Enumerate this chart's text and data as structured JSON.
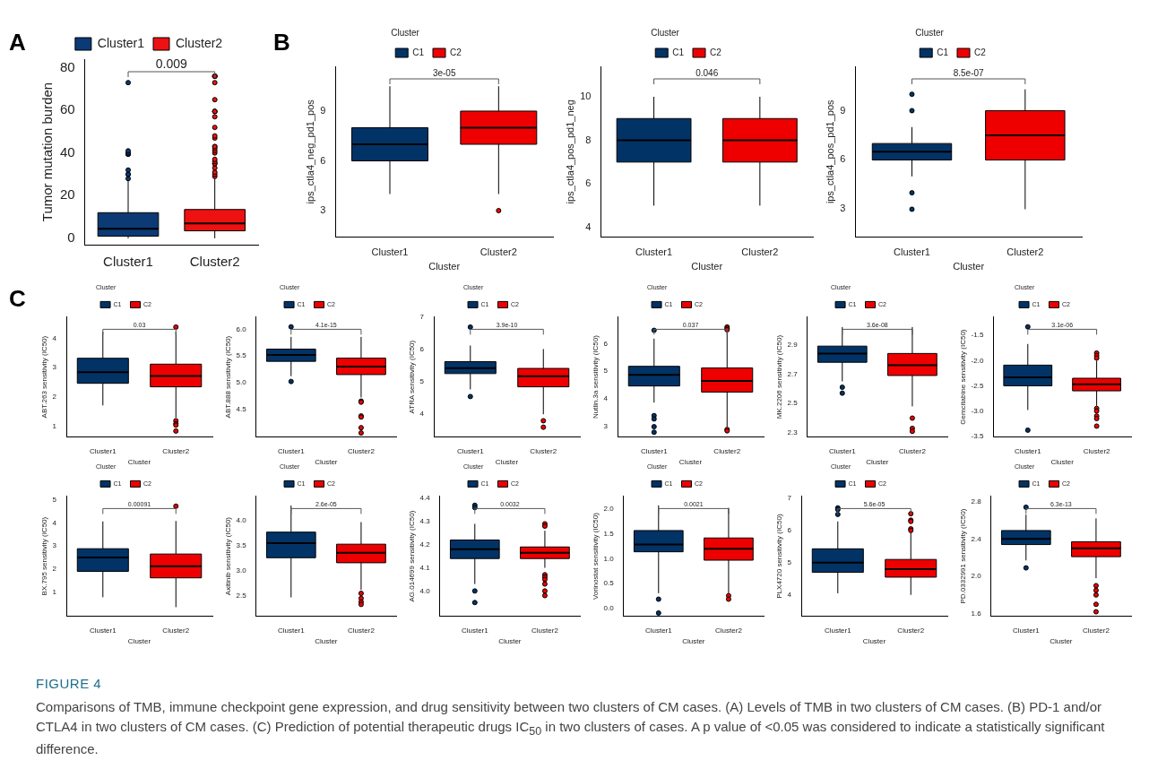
{
  "chart_data": [
    {
      "type": "box",
      "title": "A",
      "categories": [
        "Cluster1",
        "Cluster2"
      ],
      "ylabel": "Tumor mutation burden",
      "ylim": [
        -3,
        84
      ],
      "yticks": [
        0,
        20,
        40,
        60,
        80
      ],
      "legend": "top",
      "annotations": [
        "0.009",
        "FIGURE 4",
        "Comparisons of TMB, immune checkpoint gene expression, and drug sensitivity between two clusters of CM cases. (A) Levels of TMB in two clusters of CM cases. (B) PD-1 and/or CTLA4 in two clusters of CM cases. (C) Prediction of potential therapeutic drugs IC$_{50}$ in two clusters of cases. A p value of <0.05 was considered to indicate a statistically significant difference."
      ],
      "series": [
        {
          "name": "Cluster1",
          "color": "#0b3a75",
          "boxes": [
            {
              "low": 0,
              "q1": 1,
              "median": 4.5,
              "q3": 12,
              "high": 27.5,
              "outliers": [
                28,
                30,
                30,
                32,
                39.5,
                39.5,
                39.5,
                40,
                41,
                73
              ]
            },
            null
          ]
        },
        {
          "name": "Cluster2",
          "color": "#ee1111",
          "boxes": [
            null,
            {
              "low": 0,
              "q1": 3.5,
              "median": 7,
              "q3": 13.5,
              "high": 28,
              "outliers": [
                29,
                30,
                31,
                33,
                35,
                35,
                36,
                37,
                40,
                41,
                42,
                43,
                43,
                47,
                48,
                52,
                57,
                59.5,
                59.5,
                59.5,
                65,
                73,
                76,
                76,
                76,
                76
              ]
            }
          ]
        }
      ]
    },
    {
      "type": "box",
      "title": "B",
      "categories": [
        "Cluster1",
        "Cluster2"
      ],
      "xlabel": "Cluster",
      "ylabel": "ips_ctla4_neg_pd1_pos",
      "ylim": [
        1.4,
        11.7
      ],
      "yticks": [
        3,
        6,
        9
      ],
      "legend": "top",
      "legend_title": "Cluster",
      "annotations": [
        "3e-05"
      ],
      "series": [
        {
          "name": "C1",
          "color": "#023366",
          "boxes": [
            {
              "low": 4,
              "q1": 6,
              "median": 7,
              "q3": 8,
              "high": 10.5
            },
            null
          ]
        },
        {
          "name": "C2",
          "color": "#ee0000",
          "boxes": [
            null,
            {
              "low": 4,
              "q1": 7,
              "median": 8,
              "q3": 9,
              "high": 10.5,
              "outliers": [
                3
              ]
            }
          ]
        }
      ]
    },
    {
      "type": "box",
      "categories": [
        "Cluster1",
        "Cluster2"
      ],
      "xlabel": "Cluster",
      "ylabel": "ips_ctla4_pos_pd1_neg",
      "ylim": [
        3.55,
        11.4
      ],
      "yticks": [
        4,
        6,
        8,
        10
      ],
      "legend": "top",
      "legend_title": "Cluster",
      "annotations": [
        "0.046"
      ],
      "series": [
        {
          "name": "C1",
          "color": "#023366",
          "boxes": [
            {
              "low": 5,
              "q1": 7,
              "median": 8,
              "q3": 9,
              "high": 10
            },
            null
          ]
        },
        {
          "name": "C2",
          "color": "#ee0000",
          "boxes": [
            null,
            {
              "low": 5,
              "q1": 7,
              "median": 8,
              "q3": 9,
              "high": 10
            }
          ]
        }
      ]
    },
    {
      "type": "box",
      "categories": [
        "Cluster1",
        "Cluster2"
      ],
      "xlabel": "Cluster",
      "ylabel": "ips_ctla4_pos_pd1_pos",
      "ylim": [
        1.3,
        11.7
      ],
      "yticks": [
        3,
        6,
        9
      ],
      "legend": "top",
      "legend_title": "Cluster",
      "annotations": [
        "8.5e-07"
      ],
      "series": [
        {
          "name": "C1",
          "color": "#023366",
          "boxes": [
            {
              "low": 5,
              "q1": 6,
              "median": 6.5,
              "q3": 7,
              "high": 8,
              "outliers": [
                3,
                4,
                9,
                10
              ]
            },
            null
          ]
        },
        {
          "name": "C2",
          "color": "#ee0000",
          "boxes": [
            null,
            {
              "low": 3,
              "q1": 6,
              "median": 7.5,
              "q3": 9,
              "high": 10.3
            }
          ]
        }
      ]
    },
    {
      "type": "box",
      "title": "C",
      "categories": [
        "Cluster1",
        "Cluster2"
      ],
      "xlabel": "Cluster",
      "ylabel": "ABT.263 sensitivity (IC50)",
      "ylim": [
        0.64,
        4.73
      ],
      "yticks": [
        1,
        2,
        3,
        4
      ],
      "legend": "top",
      "legend_title": "Cluster",
      "annotations": [
        "0.03"
      ],
      "series": [
        {
          "name": "C1",
          "color": "#023366",
          "boxes": [
            {
              "low": 1.72,
              "q1": 2.47,
              "median": 2.85,
              "q3": 3.32,
              "high": 4.22
            },
            null
          ]
        },
        {
          "name": "C2",
          "color": "#ee0000",
          "boxes": [
            null,
            {
              "low": 1.3,
              "q1": 2.35,
              "median": 2.72,
              "q3": 3.12,
              "high": 4.22,
              "outliers": [
                4.38,
                1.2,
                1.1,
                1.05,
                0.85
              ]
            }
          ]
        }
      ]
    },
    {
      "type": "box",
      "categories": [
        "Cluster1",
        "Cluster2"
      ],
      "xlabel": "Cluster",
      "ylabel": "ABT.888 sensitivity (IC50)",
      "ylim": [
        3.97,
        6.24
      ],
      "yticks": [
        4.5,
        {
          "value": 5,
          "label": "5.0"
        },
        5.5,
        {
          "value": 6,
          "label": "6.0"
        }
      ],
      "legend": "top",
      "legend_title": "Cluster",
      "annotations": [
        "4.1e-15"
      ],
      "series": [
        {
          "name": "C1",
          "color": "#023366",
          "boxes": [
            {
              "low": 5.12,
              "q1": 5.4,
              "median": 5.52,
              "q3": 5.63,
              "high": 5.86,
              "outliers": [
                6.05,
                5.02
              ]
            },
            null
          ]
        },
        {
          "name": "C2",
          "color": "#ee0000",
          "boxes": [
            null,
            {
              "low": 4.72,
              "q1": 5.15,
              "median": 5.3,
              "q3": 5.46,
              "high": 5.86,
              "outliers": [
                4.65,
                4.63,
                4.37,
                4.35,
                4.15,
                4.05
              ]
            }
          ]
        }
      ]
    },
    {
      "type": "box",
      "categories": [
        "Cluster1",
        "Cluster2"
      ],
      "xlabel": "Cluster",
      "ylabel": "ATRA sensitivity (IC50)",
      "ylim": [
        3.29,
        7.02
      ],
      "yticks": [
        4,
        5,
        6,
        7
      ],
      "legend": "top",
      "legend_title": "Cluster",
      "annotations": [
        "3.9e-10"
      ],
      "series": [
        {
          "name": "C1",
          "color": "#023366",
          "boxes": [
            {
              "low": 4.77,
              "q1": 5.26,
              "median": 5.43,
              "q3": 5.63,
              "high": 6.13,
              "outliers": [
                6.7,
                4.55
              ]
            },
            null
          ]
        },
        {
          "name": "C2",
          "color": "#ee0000",
          "boxes": [
            null,
            {
              "low": 4,
              "q1": 4.85,
              "median": 5.18,
              "q3": 5.42,
              "high": 6.02,
              "outliers": [
                3.8,
                3.6
              ]
            }
          ]
        }
      ]
    },
    {
      "type": "box",
      "categories": [
        "Cluster1",
        "Cluster2"
      ],
      "xlabel": "Cluster",
      "ylabel": "Nutlin.3a sensitivity (IC50)",
      "ylim": [
        2.62,
        6.97
      ],
      "yticks": [
        3,
        4,
        5,
        6
      ],
      "legend": "top",
      "legend_title": "Cluster",
      "annotations": [
        "0.037"
      ],
      "series": [
        {
          "name": "C1",
          "color": "#023366",
          "boxes": [
            {
              "low": 3.87,
              "q1": 4.47,
              "median": 4.87,
              "q3": 5.18,
              "high": 6.18,
              "outliers": [
                6.48,
                3.4,
                3.28,
                3,
                2.8
              ]
            },
            null
          ]
        },
        {
          "name": "C2",
          "color": "#ee0000",
          "boxes": [
            null,
            {
              "low": 3,
              "q1": 4.25,
              "median": 4.65,
              "q3": 5.12,
              "high": 6.4,
              "outliers": [
                6.6,
                6.55,
                6.5,
                2.9,
                2.85
              ]
            }
          ]
        }
      ]
    },
    {
      "type": "box",
      "categories": [
        "Cluster1",
        "Cluster2"
      ],
      "xlabel": "Cluster",
      "ylabel": "MK.2206 sensitivity (IC50)",
      "ylim": [
        2.27,
        3.09
      ],
      "yticks": [
        2.3,
        2.5,
        2.7,
        2.9
      ],
      "legend": "top",
      "legend_title": "Cluster",
      "annotations": [
        "3.6e-08"
      ],
      "series": [
        {
          "name": "C1",
          "color": "#023366",
          "boxes": [
            {
              "low": 2.65,
              "q1": 2.78,
              "median": 2.84,
              "q3": 2.89,
              "high": 3.02,
              "outliers": [
                2.61,
                2.57
              ]
            },
            null
          ]
        },
        {
          "name": "C2",
          "color": "#ee0000",
          "boxes": [
            null,
            {
              "low": 2.48,
              "q1": 2.69,
              "median": 2.76,
              "q3": 2.84,
              "high": 3.02,
              "outliers": [
                2.4,
                2.33,
                2.31
              ]
            }
          ]
        }
      ]
    },
    {
      "type": "box",
      "categories": [
        "Cluster1",
        "Cluster2"
      ],
      "xlabel": "Cluster",
      "ylabel": "Gemcitabine sensitivity (IC50)",
      "ylim": [
        -3.52,
        -1.13
      ],
      "yticks": [
        -3.5,
        {
          "value": -3,
          "label": "-3.0"
        },
        -2.5,
        {
          "value": -2,
          "label": "-2.0"
        },
        -1.5
      ],
      "legend": "top",
      "legend_title": "Cluster",
      "annotations": [
        "3.1e-06"
      ],
      "series": [
        {
          "name": "C1",
          "color": "#023366",
          "boxes": [
            {
              "low": -2.98,
              "q1": -2.5,
              "median": -2.33,
              "q3": -2.09,
              "high": -1.67,
              "outliers": [
                -1.33,
                -3.38
              ]
            },
            null
          ]
        },
        {
          "name": "C2",
          "color": "#ee0000",
          "boxes": [
            null,
            {
              "low": -2.9,
              "q1": -2.6,
              "median": -2.47,
              "q3": -2.35,
              "high": -2,
              "outliers": [
                -1.85,
                -1.9,
                -1.95,
                -2.95,
                -3,
                -3.1,
                -3.15,
                -3.3
              ]
            }
          ]
        }
      ]
    },
    {
      "type": "box",
      "categories": [
        "Cluster1",
        "Cluster2"
      ],
      "xlabel": "Cluster",
      "ylabel": "BX.795 sensitivity (IC50)",
      "ylim": [
        -0.05,
        5.16
      ],
      "yticks": [
        1,
        2,
        3,
        4,
        5
      ],
      "legend": "top",
      "legend_title": "Cluster",
      "annotations": [
        "0.00091"
      ],
      "series": [
        {
          "name": "C1",
          "color": "#023366",
          "boxes": [
            {
              "low": 0.78,
              "q1": 1.9,
              "median": 2.5,
              "q3": 2.88,
              "high": 4.06
            },
            null
          ]
        },
        {
          "name": "C2",
          "color": "#ee0000",
          "boxes": [
            null,
            {
              "low": 0.35,
              "q1": 1.62,
              "median": 2.12,
              "q3": 2.65,
              "high": 4.08,
              "outliers": [
                4.72
              ]
            }
          ]
        }
      ]
    },
    {
      "type": "box",
      "categories": [
        "Cluster1",
        "Cluster2"
      ],
      "xlabel": "Cluster",
      "ylabel": "Axitinib sensitivity (IC50)",
      "ylim": [
        2.09,
        4.49
      ],
      "yticks": [
        2.5,
        {
          "value": 3,
          "label": "3.0"
        },
        3.5,
        {
          "value": 4,
          "label": "4.0"
        }
      ],
      "legend": "top",
      "legend_title": "Cluster",
      "annotations": [
        "2.6e-05"
      ],
      "series": [
        {
          "name": "C1",
          "color": "#023366",
          "boxes": [
            {
              "low": 2.47,
              "q1": 3.26,
              "median": 3.55,
              "q3": 3.77,
              "high": 4.3
            },
            null
          ]
        },
        {
          "name": "C2",
          "color": "#ee0000",
          "boxes": [
            null,
            {
              "low": 2.62,
              "q1": 3.16,
              "median": 3.36,
              "q3": 3.53,
              "high": 3.97,
              "outliers": [
                2.55,
                2.45,
                2.38,
                2.33
              ]
            }
          ]
        }
      ]
    },
    {
      "type": "box",
      "categories": [
        "Cluster1",
        "Cluster2"
      ],
      "xlabel": "Cluster",
      "ylabel": "AG.014699 sensitivity (IC50)",
      "ylim": [
        3.89,
        4.41
      ],
      "yticks": [
        {
          "value": 4,
          "label": "4.0"
        },
        4.1,
        4.2,
        4.3,
        4.4
      ],
      "legend": "top",
      "legend_title": "Cluster",
      "annotations": [
        "0.0032"
      ],
      "series": [
        {
          "name": "C1",
          "color": "#023366",
          "boxes": [
            {
              "low": 4.03,
              "q1": 4.14,
              "median": 4.18,
              "q3": 4.22,
              "high": 4.29,
              "outliers": [
                4.37,
                4.36,
                4,
                3.95
              ]
            },
            null
          ]
        },
        {
          "name": "C2",
          "color": "#ee0000",
          "boxes": [
            null,
            {
              "low": 4.1,
              "q1": 4.14,
              "median": 4.165,
              "q3": 4.19,
              "high": 4.26,
              "outliers": [
                4.29,
                4.28,
                4.07,
                4.06,
                4.05,
                4.03,
                4,
                3.98
              ]
            }
          ]
        }
      ]
    },
    {
      "type": "box",
      "categories": [
        "Cluster1",
        "Cluster2"
      ],
      "xlabel": "Cluster",
      "ylabel": "Vorinostat sensitivity (IC50)",
      "ylim": [
        -0.17,
        2.27
      ],
      "yticks": [
        {
          "value": 0,
          "label": "0.0"
        },
        0.5,
        {
          "value": 1,
          "label": "1.0"
        },
        1.5,
        {
          "value": 2,
          "label": "2.0"
        }
      ],
      "legend": "top",
      "legend_title": "Cluster",
      "annotations": [
        "0.0021"
      ],
      "series": [
        {
          "name": "C1",
          "color": "#023366",
          "boxes": [
            {
              "low": 0.3,
              "q1": 1.14,
              "median": 1.29,
              "q3": 1.57,
              "high": 2.08,
              "outliers": [
                0.18,
                -0.1
              ]
            },
            null
          ]
        },
        {
          "name": "C2",
          "color": "#ee0000",
          "boxes": [
            null,
            {
              "low": 0.3,
              "q1": 0.97,
              "median": 1.2,
              "q3": 1.42,
              "high": 2.03,
              "outliers": [
                0.25,
                0.18
              ]
            }
          ]
        }
      ]
    },
    {
      "type": "box",
      "categories": [
        "Cluster1",
        "Cluster2"
      ],
      "xlabel": "Cluster",
      "ylabel": "PLX4720 sensitivity (IC50)",
      "ylim": [
        3.33,
        7.07
      ],
      "yticks": [
        4,
        5,
        6,
        7
      ],
      "legend": "top",
      "legend_title": "Cluster",
      "annotations": [
        "5.6e-05"
      ],
      "series": [
        {
          "name": "C1",
          "color": "#023366",
          "boxes": [
            {
              "low": 4.05,
              "q1": 4.7,
              "median": 5,
              "q3": 5.43,
              "high": 6.28,
              "outliers": [
                6.7,
                6.65,
                6.5
              ]
            },
            null
          ]
        },
        {
          "name": "C2",
          "color": "#ee0000",
          "boxes": [
            null,
            {
              "low": 4,
              "q1": 4.55,
              "median": 4.8,
              "q3": 5.1,
              "high": 5.95,
              "outliers": [
                6.52,
                6.32,
                6.28,
                6.05,
                6
              ]
            }
          ]
        }
      ]
    },
    {
      "type": "box",
      "categories": [
        "Cluster1",
        "Cluster2"
      ],
      "xlabel": "Cluster",
      "ylabel": "PD.0332991 sensitivity (IC50)",
      "ylim": [
        1.57,
        2.86
      ],
      "yticks": [
        1.6,
        {
          "value": 2,
          "label": "2.0"
        },
        2.4,
        2.8
      ],
      "legend": "top",
      "legend_title": "Cluster",
      "annotations": [
        "6.3e-13"
      ],
      "series": [
        {
          "name": "C1",
          "color": "#023366",
          "boxes": [
            {
              "low": 2.17,
              "q1": 2.34,
              "median": 2.4,
              "q3": 2.49,
              "high": 2.66,
              "outliers": [
                2.74,
                2.09
              ]
            },
            null
          ]
        },
        {
          "name": "C2",
          "color": "#ee0000",
          "boxes": [
            null,
            {
              "low": 1.98,
              "q1": 2.21,
              "median": 2.3,
              "q3": 2.37,
              "high": 2.62,
              "outliers": [
                1.9,
                1.85,
                1.8,
                1.7,
                1.62
              ]
            }
          ]
        }
      ]
    }
  ]
}
